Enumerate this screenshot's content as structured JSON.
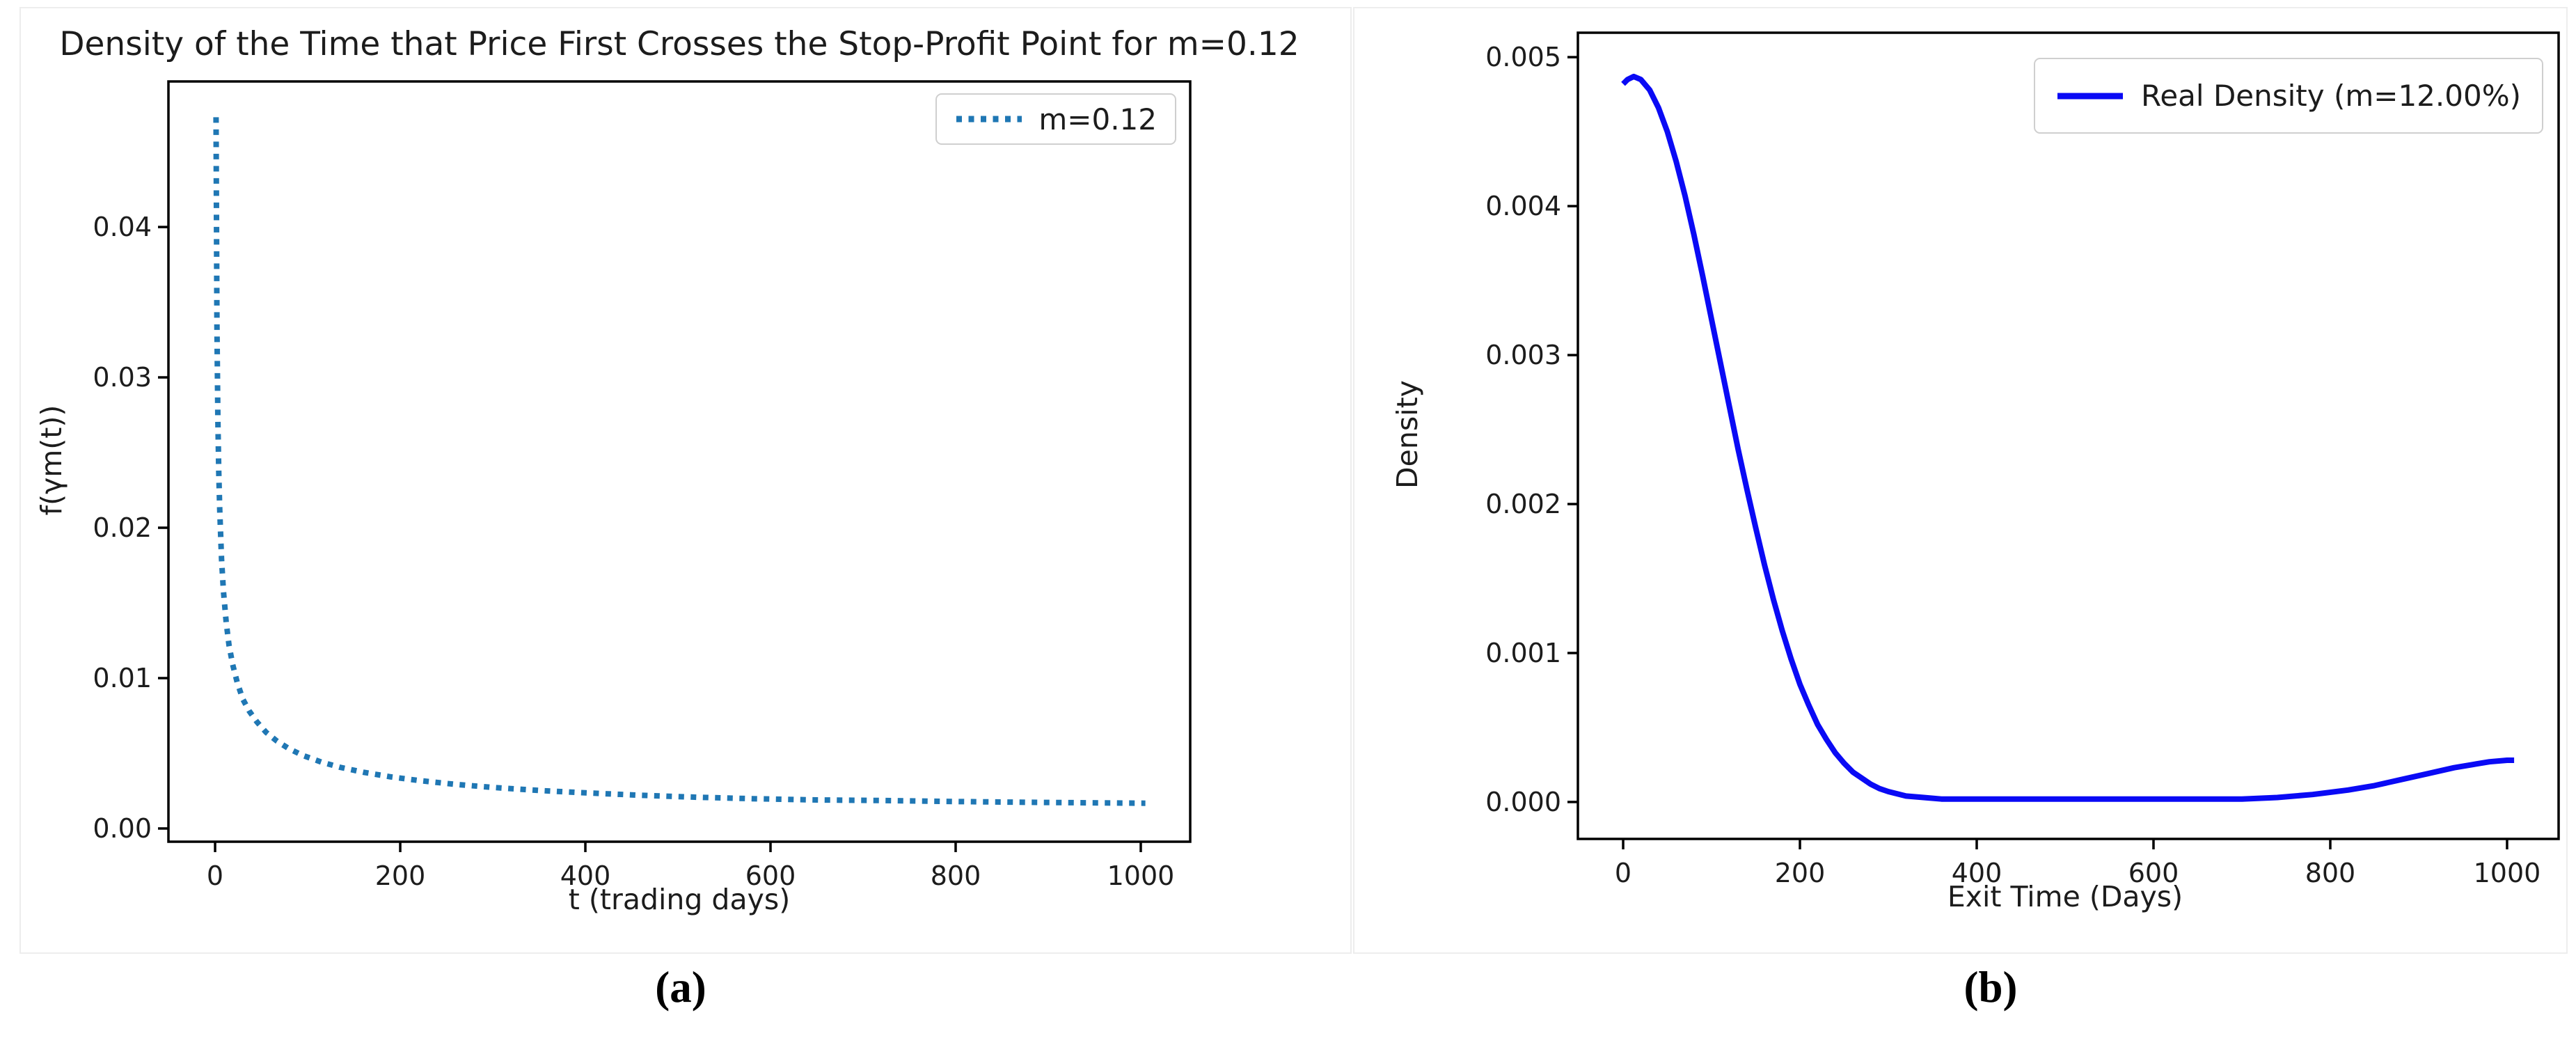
{
  "captions": {
    "a": "(a)",
    "b": "(b)"
  },
  "colors": {
    "panel_border": "#ededed",
    "spine": "#000000",
    "text": "#1c1c1c",
    "series_a": "#1f77b4",
    "series_b": "#0a0af5",
    "legend_border": "#cfcfcf"
  },
  "chart_data": [
    {
      "id": "a",
      "type": "line",
      "title": "Density of the Time that Price First Crosses the Stop-Profit Point for m=0.12",
      "xlabel": "t (trading days)",
      "ylabel": "f(γm(t))",
      "xlim": [
        -50.4,
        1053.4
      ],
      "ylim": [
        -0.00088,
        0.04968
      ],
      "xticks": [
        0,
        200,
        400,
        600,
        800,
        1000
      ],
      "xtick_labels": [
        "0",
        "200",
        "400",
        "600",
        "800",
        "1000"
      ],
      "yticks": [
        0,
        0.01,
        0.02,
        0.03,
        0.04
      ],
      "ytick_labels": [
        "0.00",
        "0.01",
        "0.02",
        "0.03",
        "0.04"
      ],
      "grid": false,
      "legend": {
        "label": "m=0.12",
        "position": "upper right",
        "line_style": "dotted"
      },
      "series": [
        {
          "name": "m=0.12",
          "style": "dotted",
          "color": "#1f77b4",
          "x": [
            1,
            2,
            3,
            4,
            5,
            7,
            9,
            12,
            15,
            19,
            24,
            30,
            37,
            45,
            55,
            67,
            80,
            95,
            115,
            135,
            160,
            190,
            220,
            260,
            300,
            350,
            400,
            460,
            520,
            580,
            650,
            720,
            800,
            880,
            960,
            1005
          ],
          "y": [
            0.0473,
            0.0334,
            0.0273,
            0.0237,
            0.0212,
            0.0179,
            0.0158,
            0.0137,
            0.0122,
            0.0109,
            0.0097,
            0.0086,
            0.0078,
            0.0071,
            0.0064,
            0.0058,
            0.0053,
            0.00485,
            0.00441,
            0.00407,
            0.00374,
            0.00343,
            0.00319,
            0.00293,
            0.00273,
            0.00253,
            0.00237,
            0.00221,
            0.00208,
            0.00198,
            0.0019,
            0.00186,
            0.00179,
            0.00174,
            0.0017,
            0.00168
          ]
        }
      ]
    },
    {
      "id": "b",
      "type": "line",
      "title": "",
      "xlabel": "Exit Time (Days)",
      "ylabel": "Density",
      "xlim": [
        -51.2,
        1058.3
      ],
      "ylim": [
        -0.000248,
        0.005164
      ],
      "xticks": [
        0,
        200,
        400,
        600,
        800,
        1000
      ],
      "xtick_labels": [
        "0",
        "200",
        "400",
        "600",
        "800",
        "1000"
      ],
      "yticks": [
        0,
        0.001,
        0.002,
        0.003,
        0.004,
        0.005
      ],
      "ytick_labels": [
        "0.000",
        "0.001",
        "0.002",
        "0.003",
        "0.004",
        "0.005"
      ],
      "grid": false,
      "legend": {
        "label": "Real Density (m=12.00%)",
        "position": "upper right",
        "line_style": "solid"
      },
      "series": [
        {
          "name": "Real Density (m=12.00%)",
          "style": "solid",
          "color": "#0a0af5",
          "x": [
            0,
            5,
            12,
            20,
            30,
            40,
            50,
            60,
            70,
            80,
            90,
            100,
            110,
            120,
            130,
            140,
            150,
            160,
            170,
            180,
            190,
            200,
            210,
            220,
            230,
            240,
            250,
            260,
            270,
            280,
            290,
            300,
            320,
            340,
            360,
            400,
            450,
            500,
            550,
            600,
            650,
            700,
            740,
            780,
            820,
            850,
            880,
            910,
            940,
            960,
            980,
            1000,
            1008
          ],
          "y": [
            0.00482,
            0.00485,
            0.00487,
            0.00485,
            0.00478,
            0.00466,
            0.0045,
            0.0043,
            0.00407,
            0.00381,
            0.00353,
            0.00324,
            0.00295,
            0.00266,
            0.00237,
            0.0021,
            0.00184,
            0.00159,
            0.00136,
            0.00115,
            0.00096,
            0.00079,
            0.00065,
            0.00052,
            0.00042,
            0.00033,
            0.00026,
            0.0002,
            0.00016,
            0.00012,
            9e-05,
            7e-05,
            4e-05,
            3e-05,
            2e-05,
            2e-05,
            2e-05,
            2e-05,
            2e-05,
            2e-05,
            2e-05,
            2e-05,
            3e-05,
            5e-05,
            8e-05,
            0.00011,
            0.00015,
            0.00019,
            0.00023,
            0.00025,
            0.00027,
            0.00028,
            0.00028
          ]
        }
      ]
    }
  ]
}
